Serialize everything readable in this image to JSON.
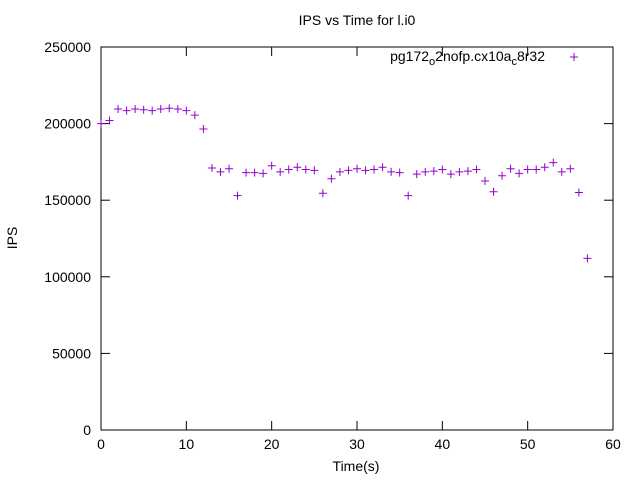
{
  "chart_data": {
    "type": "scatter",
    "title": "IPS vs Time for l.i0",
    "xlabel": "Time(s)",
    "ylabel": "IPS",
    "xlim": [
      0,
      60
    ],
    "ylim": [
      0,
      250000
    ],
    "xticks": [
      0,
      10,
      20,
      30,
      40,
      50,
      60
    ],
    "yticks": [
      0,
      50000,
      100000,
      150000,
      200000,
      250000
    ],
    "grid": false,
    "legend_position": "top-right",
    "marker": "+",
    "series": [
      {
        "name": "pg172_o2nofp.cx10a_c8r32",
        "legend_parts": [
          {
            "text": "pg172",
            "sub": false
          },
          {
            "text": "o",
            "sub": true
          },
          {
            "text": "2nofp.cx10a",
            "sub": false
          },
          {
            "text": "c",
            "sub": true
          },
          {
            "text": "8r32",
            "sub": false
          }
        ],
        "color": "#9400d3",
        "x": [
          0,
          1,
          2,
          3,
          4,
          5,
          6,
          7,
          8,
          9,
          10,
          11,
          12,
          13,
          14,
          15,
          16,
          17,
          18,
          19,
          20,
          21,
          22,
          23,
          24,
          25,
          26,
          27,
          28,
          29,
          30,
          31,
          32,
          33,
          34,
          35,
          36,
          37,
          38,
          39,
          40,
          41,
          42,
          43,
          44,
          45,
          46,
          47,
          48,
          49,
          50,
          51,
          52,
          53,
          54,
          55,
          56,
          57
        ],
        "y": [
          200000,
          202000,
          209500,
          208500,
          209500,
          209000,
          208500,
          209500,
          210000,
          209500,
          208500,
          205500,
          196500,
          171000,
          168500,
          170500,
          153000,
          168000,
          168000,
          167500,
          172500,
          168500,
          170000,
          171500,
          170000,
          169500,
          154500,
          164000,
          168500,
          169500,
          170500,
          169500,
          170000,
          171500,
          168500,
          168000,
          153000,
          167000,
          168500,
          169000,
          170000,
          167000,
          168500,
          169000,
          170000,
          162500,
          155500,
          166000,
          170500,
          167500,
          170000,
          170000,
          171500,
          174500,
          168500,
          170500,
          155000,
          112000
        ]
      }
    ]
  }
}
